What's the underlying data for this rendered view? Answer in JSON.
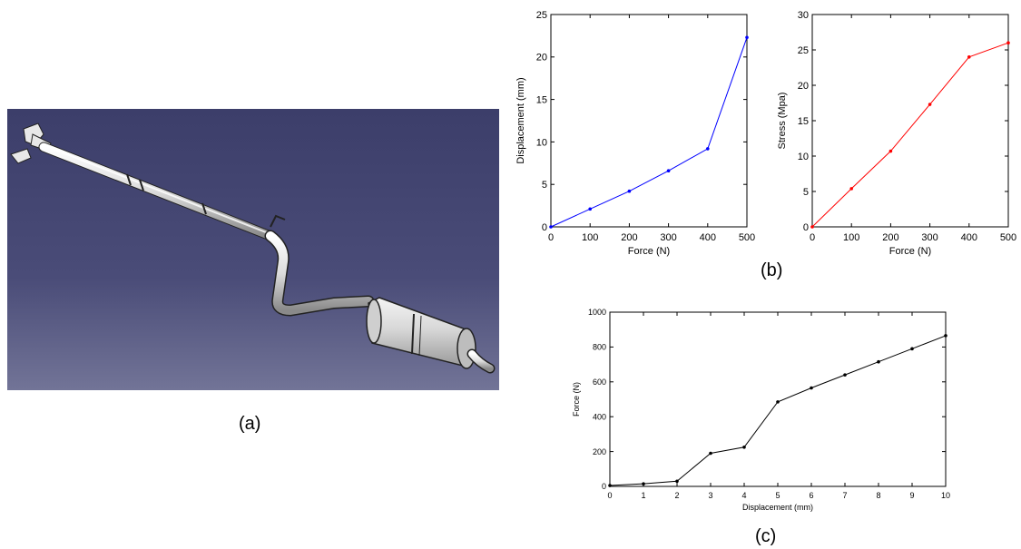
{
  "labels": {
    "panel_a": "(a)",
    "panel_b": "(b)",
    "panel_c": "(c)"
  },
  "render": {
    "subject": "exhaust-system-cad-model",
    "background_top": "#3c3e6a",
    "background_bottom": "#6e7094",
    "body_color": "#e6e6e6"
  },
  "chart_data": [
    {
      "type": "line",
      "xlabel": "Force (N)",
      "ylabel": "Displacement (mm)",
      "x": [
        0,
        100,
        200,
        300,
        400,
        500
      ],
      "series": [
        {
          "values": [
            0,
            2.1,
            4.2,
            6.6,
            9.2,
            22.3
          ],
          "color": "#0000ff"
        }
      ],
      "xlim": [
        0,
        500
      ],
      "ylim": [
        0,
        25
      ],
      "xticks": [
        0,
        100,
        200,
        300,
        400,
        500
      ],
      "yticks": [
        0,
        5,
        10,
        15,
        20,
        25
      ],
      "grid": false
    },
    {
      "type": "line",
      "xlabel": "Force (N)",
      "ylabel": "Stress (Mpa)",
      "x": [
        0,
        100,
        200,
        300,
        400,
        500
      ],
      "series": [
        {
          "values": [
            0,
            5.4,
            10.7,
            17.3,
            24.0,
            26.0
          ],
          "color": "#ff0000"
        }
      ],
      "xlim": [
        0,
        500
      ],
      "ylim": [
        0,
        30
      ],
      "xticks": [
        0,
        100,
        200,
        300,
        400,
        500
      ],
      "yticks": [
        0,
        5,
        10,
        15,
        20,
        25,
        30
      ],
      "grid": false
    },
    {
      "type": "line",
      "xlabel": "Displacement (mm)",
      "ylabel": "Force (N)",
      "x": [
        0,
        1,
        2,
        3,
        4,
        5,
        6,
        7,
        8,
        9,
        10
      ],
      "series": [
        {
          "values": [
            5,
            15,
            30,
            190,
            225,
            485,
            565,
            640,
            715,
            790,
            865
          ],
          "color": "#000000"
        }
      ],
      "xlim": [
        0,
        10
      ],
      "ylim": [
        0,
        1000
      ],
      "xticks": [
        0,
        1,
        2,
        3,
        4,
        5,
        6,
        7,
        8,
        9,
        10
      ],
      "yticks": [
        0,
        200,
        400,
        600,
        800,
        1000
      ],
      "grid": false
    }
  ]
}
